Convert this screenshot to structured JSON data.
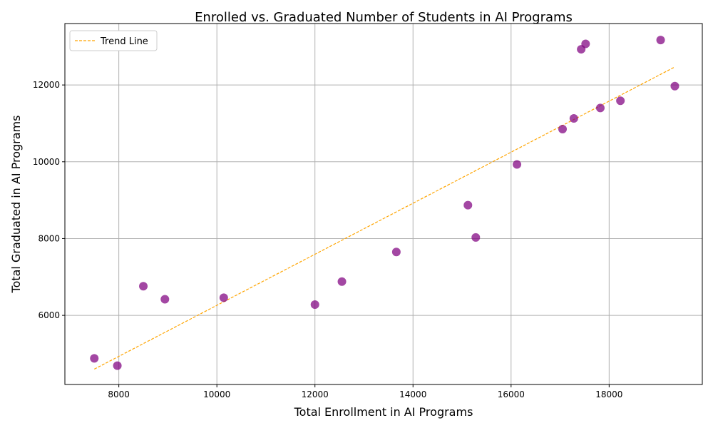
{
  "chart_data": {
    "type": "scatter",
    "title": "Enrolled vs. Graduated Number of Students in AI Programs",
    "xlabel": "Total Enrollment in AI Programs",
    "ylabel": "Total Graduated in AI Programs",
    "xlim": [
      6900,
      19900
    ],
    "ylim": [
      4200,
      13600
    ],
    "xticks": [
      8000,
      10000,
      12000,
      14000,
      16000,
      18000
    ],
    "yticks": [
      6000,
      8000,
      10000,
      12000
    ],
    "grid": true,
    "legend": {
      "position": "top-left",
      "entries": [
        "Trend Line"
      ]
    },
    "colors": {
      "points": "#800080",
      "trend": "#ffa500",
      "grid": "#b0b0b0"
    },
    "points": [
      {
        "x": 7500,
        "y": 4880
      },
      {
        "x": 7970,
        "y": 4690
      },
      {
        "x": 8500,
        "y": 6760
      },
      {
        "x": 8940,
        "y": 6420
      },
      {
        "x": 10140,
        "y": 6460
      },
      {
        "x": 12000,
        "y": 6280
      },
      {
        "x": 12550,
        "y": 6880
      },
      {
        "x": 13660,
        "y": 7650
      },
      {
        "x": 15120,
        "y": 8870
      },
      {
        "x": 15280,
        "y": 8030
      },
      {
        "x": 16120,
        "y": 9930
      },
      {
        "x": 17050,
        "y": 10850
      },
      {
        "x": 17280,
        "y": 11130
      },
      {
        "x": 17430,
        "y": 12930
      },
      {
        "x": 17520,
        "y": 13070
      },
      {
        "x": 17820,
        "y": 11400
      },
      {
        "x": 18230,
        "y": 11590
      },
      {
        "x": 19050,
        "y": 13170
      },
      {
        "x": 19340,
        "y": 11970
      }
    ],
    "trend_line": {
      "x": [
        7500,
        19340
      ],
      "y": [
        4600,
        12470
      ]
    }
  }
}
